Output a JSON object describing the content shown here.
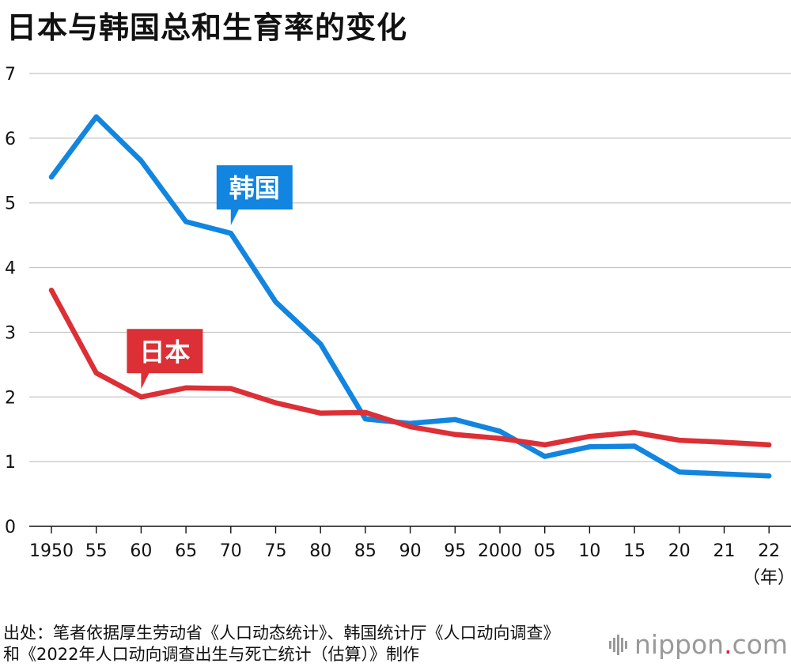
{
  "title": "日本与韩国总和生育率的变化",
  "chart_data": {
    "type": "line",
    "title": "日本与韩国总和生育率的变化",
    "xlabel": "（年）",
    "ylabel": "",
    "ylim": [
      0,
      7
    ],
    "yticks": [
      0,
      1,
      2,
      3,
      4,
      5,
      6,
      7
    ],
    "categories": [
      "1950",
      "55",
      "60",
      "65",
      "70",
      "75",
      "80",
      "85",
      "90",
      "95",
      "2000",
      "05",
      "10",
      "15",
      "20",
      "21",
      "22"
    ],
    "series": [
      {
        "name": "韩国",
        "color": "#1185e0",
        "label_points_to_index": 4,
        "values": [
          5.4,
          6.33,
          5.65,
          4.71,
          4.53,
          3.47,
          2.82,
          1.66,
          1.59,
          1.65,
          1.47,
          1.08,
          1.23,
          1.24,
          0.84,
          0.81,
          0.78
        ]
      },
      {
        "name": "日本",
        "color": "#dc2f36",
        "label_points_to_index": 2,
        "values": [
          3.65,
          2.37,
          2.0,
          2.14,
          2.13,
          1.91,
          1.75,
          1.76,
          1.54,
          1.42,
          1.36,
          1.26,
          1.39,
          1.45,
          1.33,
          1.3,
          1.26
        ]
      }
    ],
    "grid": true,
    "legend": "inline labels"
  },
  "source_line1": "出处：笔者依据厚生劳动省《人口动态统计》、韩国统计厅《人口动向调查》",
  "source_line2": "和《2022年人口动向调查出生与死亡统计（估算）》制作",
  "logo": {
    "name": "nippon",
    "dot": ".",
    "tld": "com"
  }
}
